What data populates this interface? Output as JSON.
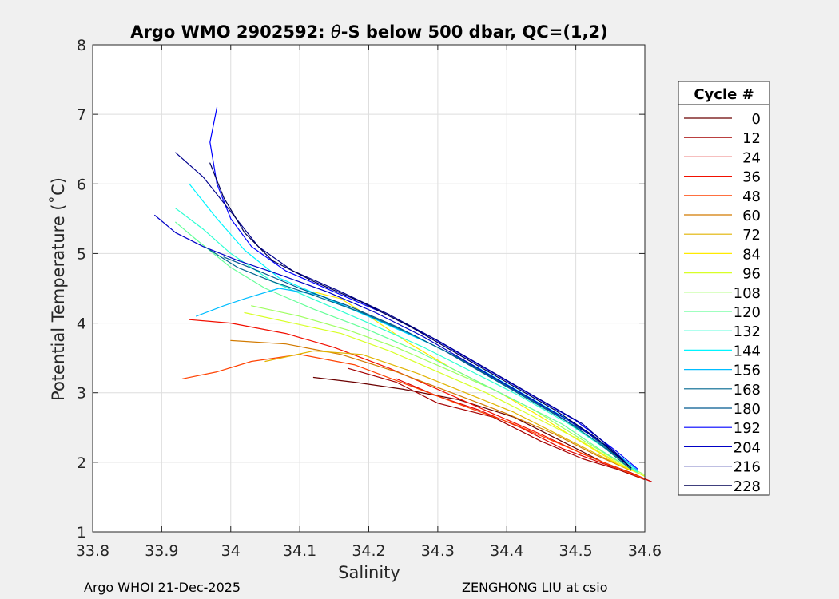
{
  "chart_data": {
    "type": "line",
    "title": "Argo WMO 2902592: θ-S below 500 dbar,  QC=(1,2)",
    "title_parts": {
      "prefix": "Argo WMO 2902592: ",
      "theta": "θ",
      "suffix": "-S below 500 dbar,  QC=(1,2)"
    },
    "xlabel": "Salinity",
    "ylabel": "Potential Temperature (˚C)",
    "xlim": [
      33.8,
      34.6
    ],
    "ylim": [
      1,
      8
    ],
    "xticks": [
      33.8,
      33.9,
      34.0,
      34.1,
      34.2,
      34.3,
      34.4,
      34.5,
      34.6
    ],
    "xtick_labels": [
      "33.8",
      "33.9",
      "34",
      "34.1",
      "34.2",
      "34.3",
      "34.4",
      "34.5",
      "34.6"
    ],
    "yticks": [
      1,
      2,
      3,
      4,
      5,
      6,
      7,
      8
    ],
    "ytick_labels": [
      "1",
      "2",
      "3",
      "4",
      "5",
      "6",
      "7",
      "8"
    ],
    "grid": true,
    "legend_title": "Cycle #",
    "legend_position": "outside-right",
    "colormap": "jet",
    "legend": [
      {
        "label": "0",
        "color": "#6b0000"
      },
      {
        "label": "12",
        "color": "#a40000"
      },
      {
        "label": "24",
        "color": "#dd0000"
      },
      {
        "label": "36",
        "color": "#f20f00"
      },
      {
        "label": "48",
        "color": "#ff4100"
      },
      {
        "label": "60",
        "color": "#d27a00"
      },
      {
        "label": "72",
        "color": "#e1b300"
      },
      {
        "label": "84",
        "color": "#ffea00"
      },
      {
        "label": "96",
        "color": "#d8ff27"
      },
      {
        "label": "108",
        "color": "#9fff60"
      },
      {
        "label": "120",
        "color": "#66ff99"
      },
      {
        "label": "132",
        "color": "#2dffd2"
      },
      {
        "label": "144",
        "color": "#00f5ff"
      },
      {
        "label": "156",
        "color": "#00bdff"
      },
      {
        "label": "168",
        "color": "#00678f"
      },
      {
        "label": "180",
        "color": "#00598f"
      },
      {
        "label": "192",
        "color": "#0000ff"
      },
      {
        "label": "204",
        "color": "#0000c6"
      },
      {
        "label": "216",
        "color": "#00008d"
      },
      {
        "label": "228",
        "color": "#000054"
      }
    ],
    "series": [
      {
        "name": "0",
        "color": "#6b0000",
        "points": [
          [
            34.12,
            3.22
          ],
          [
            34.18,
            3.15
          ],
          [
            34.25,
            3.05
          ],
          [
            34.33,
            2.9
          ],
          [
            34.41,
            2.65
          ],
          [
            34.48,
            2.3
          ],
          [
            34.54,
            2.0
          ],
          [
            34.58,
            1.85
          ],
          [
            34.61,
            1.72
          ]
        ]
      },
      {
        "name": "12",
        "color": "#a40000",
        "points": [
          [
            34.17,
            3.35
          ],
          [
            34.24,
            3.15
          ],
          [
            34.3,
            2.85
          ],
          [
            34.38,
            2.65
          ],
          [
            34.45,
            2.3
          ],
          [
            34.51,
            2.05
          ],
          [
            34.56,
            1.9
          ],
          [
            34.6,
            1.75
          ]
        ]
      },
      {
        "name": "24",
        "color": "#dd0000",
        "points": [
          [
            34.24,
            3.2
          ],
          [
            34.3,
            2.95
          ],
          [
            34.36,
            2.75
          ],
          [
            34.42,
            2.5
          ],
          [
            34.48,
            2.2
          ],
          [
            34.54,
            1.98
          ],
          [
            34.58,
            1.85
          ],
          [
            34.61,
            1.72
          ]
        ]
      },
      {
        "name": "36",
        "color": "#f20f00",
        "points": [
          [
            33.94,
            4.05
          ],
          [
            34.0,
            4.0
          ],
          [
            34.08,
            3.85
          ],
          [
            34.15,
            3.65
          ],
          [
            34.23,
            3.35
          ],
          [
            34.3,
            3.05
          ],
          [
            34.38,
            2.7
          ],
          [
            34.45,
            2.4
          ],
          [
            34.51,
            2.12
          ],
          [
            34.56,
            1.92
          ],
          [
            34.6,
            1.76
          ]
        ]
      },
      {
        "name": "48",
        "color": "#ff4100",
        "points": [
          [
            33.93,
            3.2
          ],
          [
            33.98,
            3.3
          ],
          [
            34.03,
            3.45
          ],
          [
            34.1,
            3.55
          ],
          [
            34.18,
            3.4
          ],
          [
            34.26,
            3.1
          ],
          [
            34.34,
            2.8
          ],
          [
            34.41,
            2.55
          ],
          [
            34.48,
            2.25
          ],
          [
            34.54,
            2.0
          ],
          [
            34.6,
            1.76
          ]
        ]
      },
      {
        "name": "60",
        "color": "#d27a00",
        "points": [
          [
            34.0,
            3.75
          ],
          [
            34.08,
            3.7
          ],
          [
            34.16,
            3.55
          ],
          [
            34.24,
            3.3
          ],
          [
            34.32,
            3.0
          ],
          [
            34.4,
            2.7
          ],
          [
            34.47,
            2.4
          ],
          [
            34.53,
            2.1
          ],
          [
            34.58,
            1.88
          ]
        ]
      },
      {
        "name": "72",
        "color": "#e1b300",
        "points": [
          [
            34.05,
            3.45
          ],
          [
            34.12,
            3.6
          ],
          [
            34.19,
            3.55
          ],
          [
            34.27,
            3.28
          ],
          [
            34.34,
            3.0
          ],
          [
            34.41,
            2.72
          ],
          [
            34.47,
            2.42
          ],
          [
            34.53,
            2.12
          ],
          [
            34.58,
            1.88
          ]
        ]
      },
      {
        "name": "84",
        "color": "#ffea00",
        "points": [
          [
            34.12,
            4.45
          ],
          [
            34.16,
            4.35
          ],
          [
            34.2,
            4.1
          ],
          [
            34.26,
            3.7
          ],
          [
            34.32,
            3.35
          ],
          [
            34.39,
            3.0
          ],
          [
            34.45,
            2.65
          ],
          [
            34.51,
            2.28
          ],
          [
            34.56,
            1.98
          ],
          [
            34.6,
            1.8
          ]
        ]
      },
      {
        "name": "96",
        "color": "#d8ff27",
        "points": [
          [
            34.02,
            4.15
          ],
          [
            34.09,
            4.0
          ],
          [
            34.16,
            3.85
          ],
          [
            34.23,
            3.6
          ],
          [
            34.3,
            3.3
          ],
          [
            34.37,
            3.0
          ],
          [
            34.43,
            2.7
          ],
          [
            34.5,
            2.35
          ],
          [
            34.56,
            2.0
          ],
          [
            34.6,
            1.8
          ]
        ]
      },
      {
        "name": "108",
        "color": "#9fff60",
        "points": [
          [
            34.03,
            4.25
          ],
          [
            34.1,
            4.1
          ],
          [
            34.17,
            3.9
          ],
          [
            34.24,
            3.65
          ],
          [
            34.31,
            3.35
          ],
          [
            34.38,
            3.05
          ],
          [
            34.44,
            2.75
          ],
          [
            34.5,
            2.38
          ],
          [
            34.56,
            2.02
          ],
          [
            34.6,
            1.82
          ]
        ]
      },
      {
        "name": "120",
        "color": "#66ff99",
        "points": [
          [
            33.92,
            5.45
          ],
          [
            33.95,
            5.2
          ],
          [
            34.0,
            4.8
          ],
          [
            34.05,
            4.5
          ],
          [
            34.12,
            4.2
          ],
          [
            34.2,
            3.9
          ],
          [
            34.27,
            3.6
          ],
          [
            34.34,
            3.25
          ],
          [
            34.41,
            2.9
          ],
          [
            34.48,
            2.55
          ],
          [
            34.54,
            2.15
          ],
          [
            34.59,
            1.85
          ]
        ]
      },
      {
        "name": "132",
        "color": "#2dffd2",
        "points": [
          [
            33.92,
            5.65
          ],
          [
            33.96,
            5.35
          ],
          [
            34.0,
            5.0
          ],
          [
            34.06,
            4.6
          ],
          [
            34.13,
            4.3
          ],
          [
            34.2,
            4.0
          ],
          [
            34.28,
            3.65
          ],
          [
            34.35,
            3.3
          ],
          [
            34.42,
            2.95
          ],
          [
            34.49,
            2.55
          ],
          [
            34.55,
            2.15
          ],
          [
            34.59,
            1.86
          ]
        ]
      },
      {
        "name": "144",
        "color": "#00f5ff",
        "points": [
          [
            33.94,
            6.0
          ],
          [
            33.98,
            5.5
          ],
          [
            34.02,
            5.05
          ],
          [
            34.07,
            4.65
          ],
          [
            34.14,
            4.35
          ],
          [
            34.21,
            4.05
          ],
          [
            34.29,
            3.7
          ],
          [
            34.36,
            3.35
          ],
          [
            34.43,
            2.95
          ],
          [
            34.5,
            2.55
          ],
          [
            34.55,
            2.18
          ],
          [
            34.59,
            1.88
          ]
        ]
      },
      {
        "name": "156",
        "color": "#00bdff",
        "points": [
          [
            33.95,
            4.1
          ],
          [
            33.99,
            4.25
          ],
          [
            34.02,
            4.35
          ],
          [
            34.07,
            4.5
          ],
          [
            34.13,
            4.4
          ],
          [
            34.2,
            4.1
          ],
          [
            34.28,
            3.75
          ],
          [
            34.35,
            3.4
          ],
          [
            34.42,
            3.0
          ],
          [
            34.49,
            2.6
          ],
          [
            34.55,
            2.2
          ],
          [
            34.59,
            1.88
          ]
        ]
      },
      {
        "name": "168",
        "color": "#00678f",
        "points": [
          [
            33.97,
            5.05
          ],
          [
            34.01,
            4.8
          ],
          [
            34.06,
            4.6
          ],
          [
            34.12,
            4.4
          ],
          [
            34.19,
            4.15
          ],
          [
            34.26,
            3.85
          ],
          [
            34.33,
            3.5
          ],
          [
            34.4,
            3.1
          ],
          [
            34.47,
            2.7
          ],
          [
            34.53,
            2.3
          ],
          [
            34.58,
            1.9
          ]
        ]
      },
      {
        "name": "180",
        "color": "#00598f",
        "points": [
          [
            33.99,
            4.95
          ],
          [
            34.04,
            4.75
          ],
          [
            34.1,
            4.5
          ],
          [
            34.17,
            4.25
          ],
          [
            34.24,
            3.95
          ],
          [
            34.31,
            3.6
          ],
          [
            34.38,
            3.2
          ],
          [
            34.45,
            2.8
          ],
          [
            34.52,
            2.4
          ],
          [
            34.58,
            1.92
          ]
        ]
      },
      {
        "name": "192",
        "color": "#0000ff",
        "points": [
          [
            33.98,
            7.1
          ],
          [
            33.97,
            6.6
          ],
          [
            33.98,
            6.0
          ],
          [
            34.0,
            5.5
          ],
          [
            34.03,
            5.1
          ],
          [
            34.08,
            4.75
          ],
          [
            34.15,
            4.45
          ],
          [
            34.22,
            4.15
          ],
          [
            34.29,
            3.8
          ],
          [
            34.36,
            3.4
          ],
          [
            34.43,
            3.0
          ],
          [
            34.5,
            2.6
          ],
          [
            34.56,
            2.15
          ],
          [
            34.59,
            1.9
          ]
        ]
      },
      {
        "name": "204",
        "color": "#0000c6",
        "points": [
          [
            33.89,
            5.55
          ],
          [
            33.92,
            5.3
          ],
          [
            33.96,
            5.1
          ],
          [
            34.01,
            4.9
          ],
          [
            34.07,
            4.7
          ],
          [
            34.14,
            4.45
          ],
          [
            34.21,
            4.15
          ],
          [
            34.28,
            3.8
          ],
          [
            34.35,
            3.4
          ],
          [
            34.42,
            3.0
          ],
          [
            34.49,
            2.6
          ],
          [
            34.55,
            2.2
          ],
          [
            34.58,
            1.92
          ]
        ]
      },
      {
        "name": "216",
        "color": "#00008d",
        "points": [
          [
            33.92,
            6.45
          ],
          [
            33.96,
            6.1
          ],
          [
            34.0,
            5.6
          ],
          [
            34.04,
            5.1
          ],
          [
            34.09,
            4.75
          ],
          [
            34.16,
            4.45
          ],
          [
            34.23,
            4.12
          ],
          [
            34.3,
            3.75
          ],
          [
            34.37,
            3.35
          ],
          [
            34.44,
            2.95
          ],
          [
            34.51,
            2.55
          ],
          [
            34.56,
            2.12
          ],
          [
            34.58,
            1.92
          ]
        ]
      },
      {
        "name": "228",
        "color": "#000054",
        "points": [
          [
            33.97,
            6.3
          ],
          [
            33.99,
            5.8
          ],
          [
            34.02,
            5.3
          ],
          [
            34.06,
            4.9
          ],
          [
            34.12,
            4.6
          ],
          [
            34.19,
            4.3
          ],
          [
            34.26,
            3.95
          ],
          [
            34.33,
            3.55
          ],
          [
            34.4,
            3.15
          ],
          [
            34.47,
            2.75
          ],
          [
            34.53,
            2.35
          ],
          [
            34.58,
            1.92
          ]
        ]
      }
    ]
  },
  "footer": {
    "left": "Argo WHOI 21-Dec-2025",
    "right": "ZENGHONG LIU at csio"
  }
}
